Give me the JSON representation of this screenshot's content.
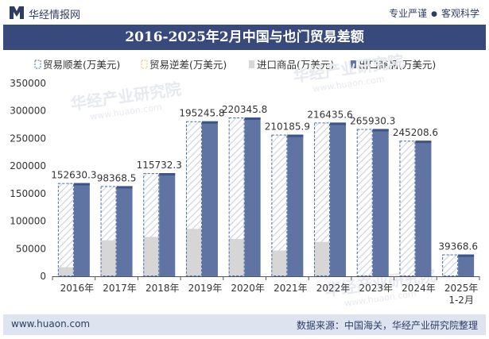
{
  "header": {
    "site_name": "华经情报网",
    "tagline_left": "专业严谨",
    "tagline_right": "客观科学"
  },
  "title": "2016-2025年2月中国与也门贸易差额",
  "footer": {
    "url": "www.huaon.com",
    "source": "数据来源：中国海关，华经产业研究院整理"
  },
  "watermark": "华经产业研究院",
  "watermark_url": "www.huaon.com",
  "colors": {
    "balance": "#4a6cb0",
    "imports": "#d6d6d6",
    "exports": "#5f74a3",
    "title_bg": "#384a7b"
  },
  "chart_data": {
    "type": "bar",
    "categories": [
      "2016年",
      "2017年",
      "2018年",
      "2019年",
      "2020年",
      "2021年",
      "2022年",
      "2023年",
      "2024年",
      "2025年\n1-2月"
    ],
    "series": [
      {
        "name": "贸易顺差(万美元)",
        "values": [
          152630.3,
          98368.5,
          115732.3,
          195245.8,
          220345.8,
          210185.9,
          216435.6,
          265930.3,
          245208.6,
          39368.6
        ]
      },
      {
        "name": "贸易逆差(万美元)",
        "values": [
          null,
          null,
          null,
          null,
          null,
          null,
          null,
          null,
          null,
          null
        ]
      },
      {
        "name": "进口商品(万美元)",
        "values": [
          16500,
          65200,
          71400,
          86000,
          67800,
          46800,
          62400,
          1300,
          800,
          200
        ]
      },
      {
        "name": "出口商品(万美元)",
        "values": [
          169130.3,
          163568.5,
          187132.3,
          281245.8,
          288145.8,
          256985.9,
          278835.6,
          267230.3,
          246008.6,
          39568.6
        ]
      }
    ],
    "data_labels": [
      "152630.3",
      "98368.5",
      "115732.3",
      "195245.8",
      "220345.8",
      "210185.9",
      "216435.6",
      "265930.3",
      "245208.6",
      "39368.6"
    ],
    "yticks": [
      "0",
      "50000",
      "100000",
      "150000",
      "200000",
      "250000",
      "300000",
      "350000"
    ],
    "ylim": [
      0,
      350000
    ],
    "grid": false,
    "legend_position": "top"
  }
}
